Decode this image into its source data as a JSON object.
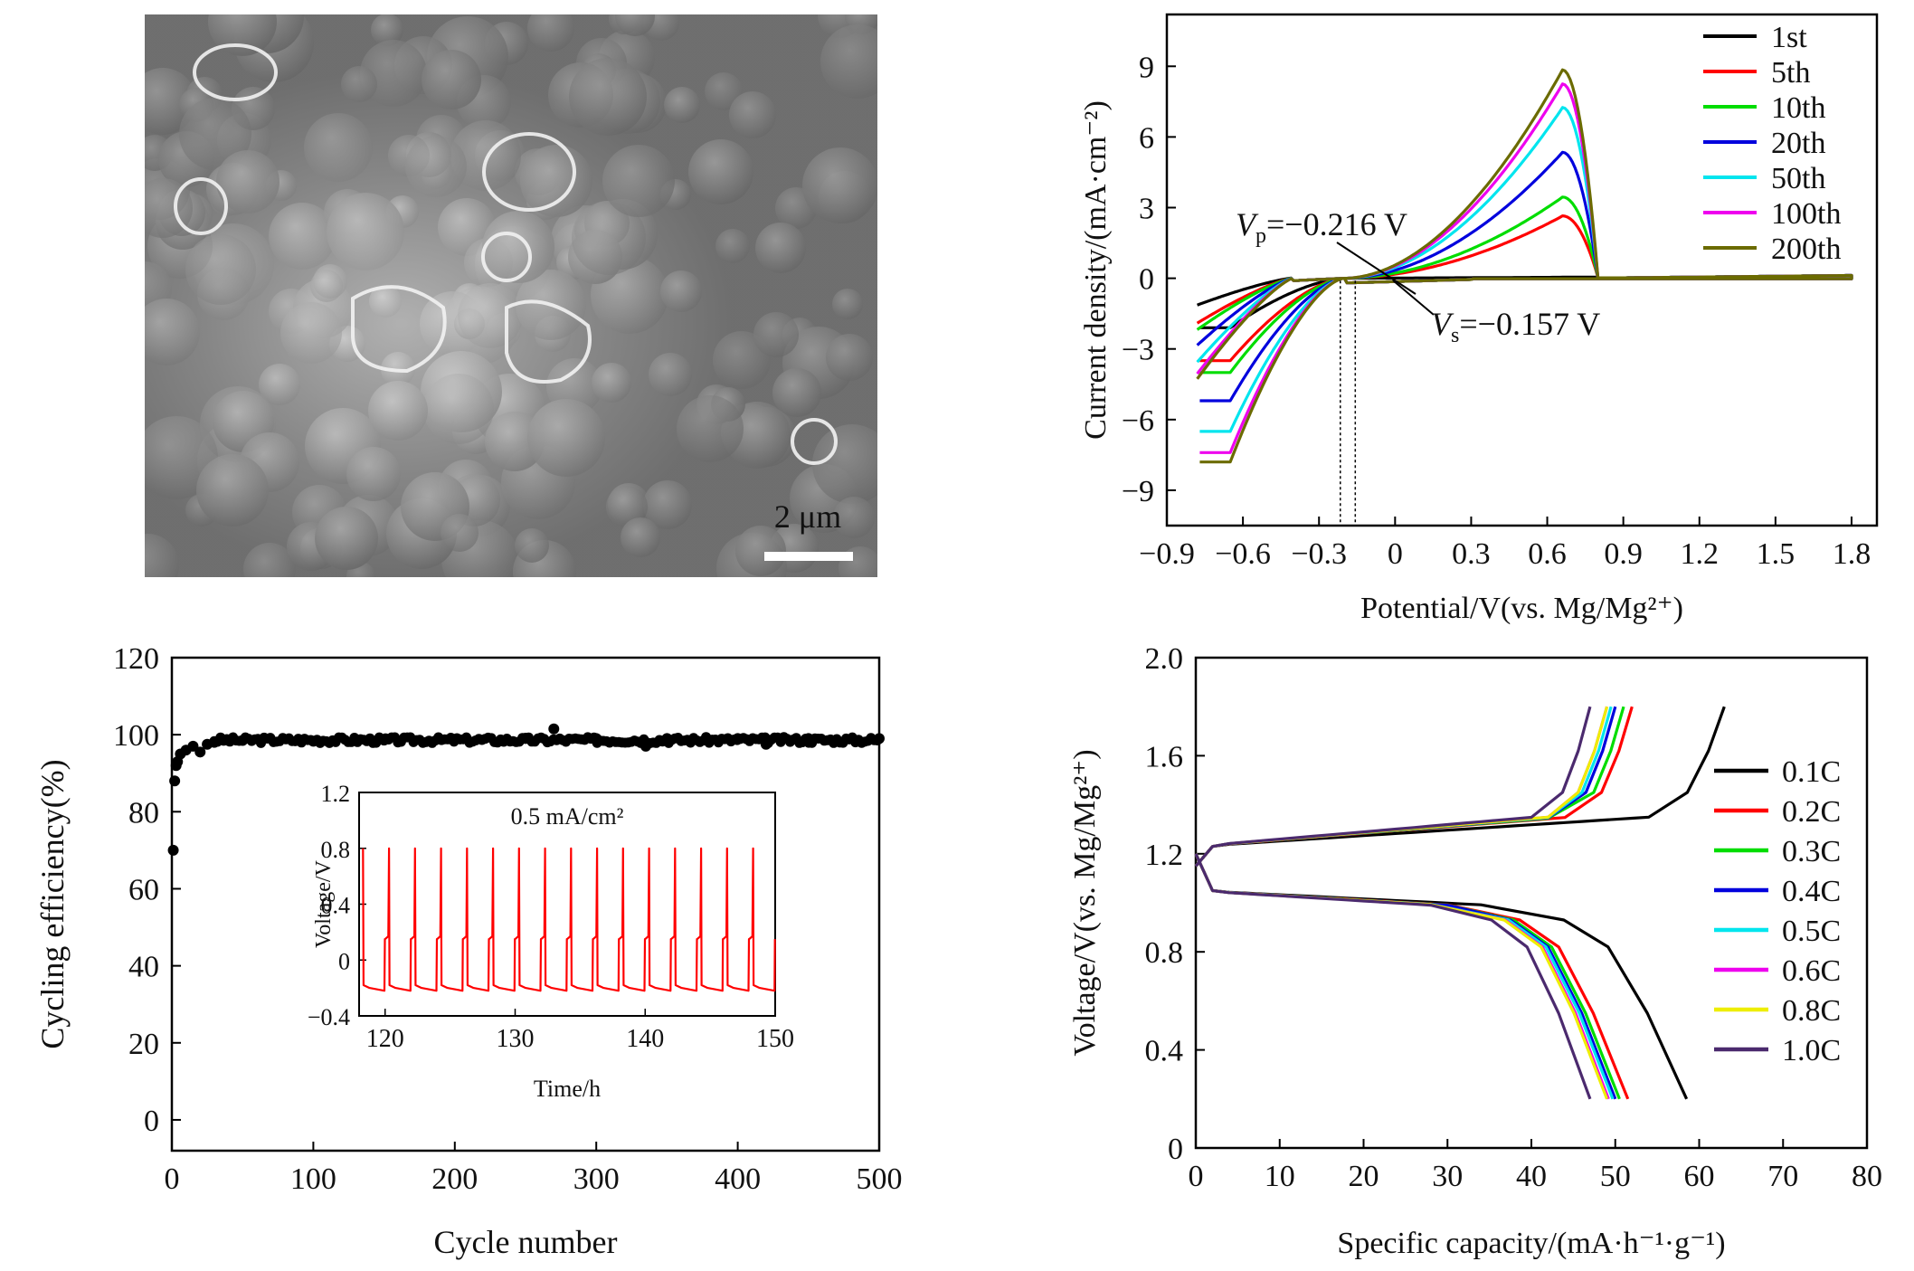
{
  "sem": {
    "scale_label": "2 μm"
  },
  "chart_data": [
    {
      "id": "cv",
      "type": "line",
      "xlabel": "Potential/V(vs. Mg/Mg²⁺)",
      "ylabel": "Current density/(mA·cm⁻²)",
      "xlim": [
        -0.9,
        1.9
      ],
      "ylim": [
        -10.5,
        11.2
      ],
      "xticks": [
        -0.9,
        -0.6,
        -0.3,
        0,
        0.3,
        0.6,
        0.9,
        1.2,
        1.5,
        1.8
      ],
      "xtick_labels": [
        "−0.9",
        "−0.6",
        "−0.3",
        "0",
        "0.3",
        "0.6",
        "0.9",
        "1.2",
        "1.5",
        "1.8"
      ],
      "yticks": [
        9,
        6,
        3,
        0,
        -3,
        -6,
        -9
      ],
      "ytick_labels": [
        "9",
        "6",
        "3",
        "0",
        "−3",
        "−6",
        "−9"
      ],
      "legend_position": "top-right",
      "annotations": [
        {
          "sym": "V",
          "sub": "p",
          "text": "=−0.216 V",
          "x": -0.216
        },
        {
          "sym": "V",
          "sub": "s",
          "text": "=−0.157 V",
          "x": -0.157
        }
      ],
      "series": [
        {
          "name": "1st",
          "color": "#000000",
          "peak": 0,
          "scan_start": -2.1
        },
        {
          "name": "5th",
          "color": "#ff0000",
          "peak": 2.6,
          "scan_start": -3.5
        },
        {
          "name": "10th",
          "color": "#00dd00",
          "peak": 3.4,
          "scan_start": -4.0
        },
        {
          "name": "20th",
          "color": "#0000dd",
          "peak": 5.3,
          "scan_start": -5.2
        },
        {
          "name": "50th",
          "color": "#00e5ee",
          "peak": 7.2,
          "scan_start": -6.5
        },
        {
          "name": "100th",
          "color": "#ee00ee",
          "peak": 8.2,
          "scan_start": -7.4
        },
        {
          "name": "200th",
          "color": "#6b6b00",
          "peak": 8.8,
          "scan_start": -7.8
        }
      ]
    },
    {
      "id": "efficiency",
      "type": "scatter",
      "xlabel": "Cycle number",
      "ylabel": "Cycling efficiency(%)",
      "xlim": [
        0,
        500
      ],
      "ylim": [
        -8,
        120
      ],
      "xticks": [
        0,
        100,
        200,
        300,
        400,
        500
      ],
      "yticks": [
        0,
        20,
        40,
        60,
        80,
        100,
        120
      ],
      "points": [
        [
          1,
          70
        ],
        [
          2,
          88
        ],
        [
          3,
          92
        ],
        [
          4,
          93
        ],
        [
          6,
          95
        ],
        [
          10,
          96
        ],
        [
          15,
          97
        ],
        [
          20,
          95.5
        ],
        [
          25,
          97.5
        ],
        [
          30,
          98
        ],
        [
          40,
          98.5
        ],
        [
          50,
          98.5
        ],
        [
          100,
          98.3
        ],
        [
          150,
          98.6
        ],
        [
          200,
          98.8
        ],
        [
          250,
          99
        ],
        [
          270,
          101.5
        ],
        [
          300,
          99
        ],
        [
          335,
          97
        ],
        [
          350,
          99
        ],
        [
          400,
          99
        ],
        [
          420,
          97.5
        ],
        [
          450,
          99
        ],
        [
          500,
          99
        ]
      ],
      "plateau": 98.6
    },
    {
      "id": "inset",
      "type": "line",
      "title": "0.5 mA/cm²",
      "xlabel": "Time/h",
      "ylabel": "Voltage/V",
      "xlim": [
        118,
        150
      ],
      "ylim": [
        -0.4,
        1.2
      ],
      "xticks": [
        120,
        130,
        140,
        150
      ],
      "yticks": [
        -0.4,
        0,
        0.4,
        0.8,
        1.2
      ],
      "cycle_period_h": 2.0,
      "high_voltage": 0.8,
      "plateau_high": 0.15,
      "plateau_low": -0.18,
      "color": "#ff0000"
    },
    {
      "id": "rate",
      "type": "line",
      "xlabel": "Specific capacity/(mA·h⁻¹·g⁻¹)",
      "ylabel": "Voltage/V(vs. Mg/Mg²⁺)",
      "xlim": [
        0,
        80
      ],
      "ylim": [
        0,
        2.0
      ],
      "xticks": [
        0,
        10,
        20,
        30,
        40,
        50,
        60,
        70,
        80
      ],
      "yticks": [
        0,
        0.4,
        0.8,
        1.2,
        1.6,
        2.0
      ],
      "ytick_labels": [
        "0",
        "0.4",
        "0.8",
        "1.2",
        "1.6",
        "2.0"
      ],
      "legend_position": "right",
      "series": [
        {
          "name": "0.1C",
          "color": "#000000",
          "charge_end": 63,
          "discharge_end": 58.5
        },
        {
          "name": "0.2C",
          "color": "#ff0000",
          "charge_end": 52,
          "discharge_end": 51.5
        },
        {
          "name": "0.3C",
          "color": "#00dd00",
          "charge_end": 51,
          "discharge_end": 50.5
        },
        {
          "name": "0.4C",
          "color": "#0000dd",
          "charge_end": 50,
          "discharge_end": 50
        },
        {
          "name": "0.5C",
          "color": "#00e5ee",
          "charge_end": 49.5,
          "discharge_end": 49.7
        },
        {
          "name": "0.6C",
          "color": "#ee00ee",
          "charge_end": 49,
          "discharge_end": 49.2
        },
        {
          "name": "0.8C",
          "color": "#eeee00",
          "charge_end": 49,
          "discharge_end": 49
        },
        {
          "name": "1.0C",
          "color": "#4b2a6e",
          "charge_end": 47,
          "discharge_end": 47
        }
      ]
    }
  ]
}
